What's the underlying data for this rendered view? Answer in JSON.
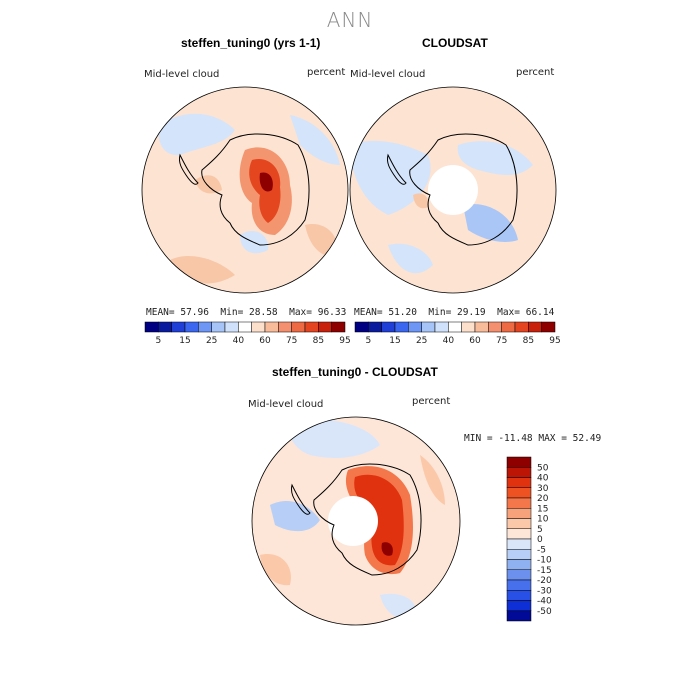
{
  "page": {
    "season": "ANN"
  },
  "panels": [
    {
      "title": "steffen_tuning0 (yrs 1-1)",
      "variable": "Mid-level cloud",
      "units": "percent",
      "mean_label": "MEAN=",
      "mean": "57.96",
      "min_label": "Min=",
      "min": "28.58",
      "max_label": "Max=",
      "max": "96.33"
    },
    {
      "title": "CLOUDSAT",
      "variable": "Mid-level cloud",
      "units": "percent",
      "mean_label": "MEAN=",
      "mean": "51.20",
      "min_label": "Min=",
      "min": "29.19",
      "max_label": "Max=",
      "max": "66.14"
    }
  ],
  "diff_panel": {
    "title": "steffen_tuning0 - CLOUDSAT",
    "variable": "Mid-level cloud",
    "units": "percent",
    "range_text": "MIN = -11.48 MAX =  52.49"
  },
  "colorbar_top": {
    "colors": [
      "#000082",
      "#0a1a9e",
      "#1f3fd6",
      "#3b67f0",
      "#6d96f5",
      "#a6c4f7",
      "#d0e2fb",
      "#ffffff",
      "#fde0cc",
      "#f9bc9a",
      "#f49070",
      "#ee6a44",
      "#e44420",
      "#c8200a",
      "#8e0000"
    ],
    "labels": [
      "5",
      "15",
      "25",
      "40",
      "60",
      "75",
      "85",
      "95"
    ]
  },
  "colorbar_diff": {
    "colors": [
      "#8e0000",
      "#bc1405",
      "#e0320f",
      "#ef5222",
      "#f3774a",
      "#f7a27a",
      "#fbc9aa",
      "#fde6d8",
      "#d9e6fa",
      "#b7cff6",
      "#8fb1f1",
      "#6b90ee",
      "#4770ec",
      "#2850e6",
      "#0f2fd6",
      "#000a96"
    ],
    "labels": [
      "50",
      "40",
      "30",
      "20",
      "15",
      "10",
      "5",
      "0",
      "-5",
      "-10",
      "-15",
      "-20",
      "-30",
      "-40",
      "-50"
    ]
  }
}
